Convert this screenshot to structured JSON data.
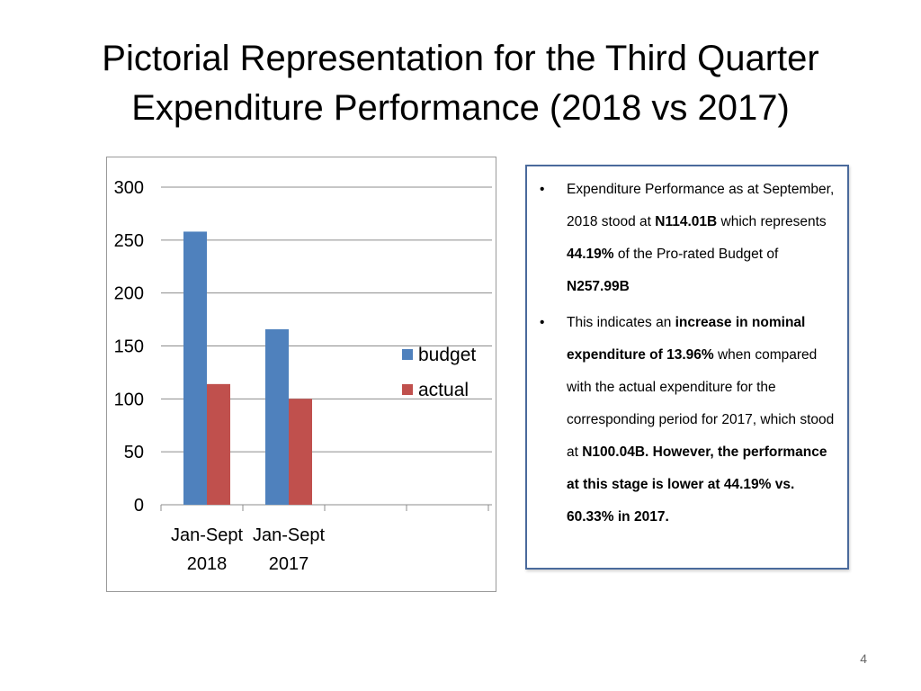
{
  "slide": {
    "title_line1": "Pictorial Representation for the Third Quarter",
    "title_line2": "Expenditure Performance (2018 vs 2017)",
    "page_number": "4"
  },
  "chart_data": {
    "type": "bar",
    "categories": [
      [
        "Jan-Sept",
        "2018"
      ],
      [
        "Jan-Sept",
        "2017"
      ]
    ],
    "series": [
      {
        "name": "budget",
        "values": [
          257.99,
          165.8
        ],
        "color": "#4f81bd"
      },
      {
        "name": "actual",
        "values": [
          114.01,
          100.04
        ],
        "color": "#c0504d"
      }
    ],
    "ylim": [
      0,
      300
    ],
    "yticks": [
      0,
      50,
      100,
      150,
      200,
      250,
      300
    ],
    "grid": true,
    "legend": "right"
  },
  "info": {
    "bullet_symbol": "•",
    "bullet1": [
      {
        "t": "Expenditure Performance as at September, 2018 stood at ",
        "b": false
      },
      {
        "t": "N114.01B",
        "b": true
      },
      {
        "t": " which represents ",
        "b": false
      },
      {
        "t": "44.19%",
        "b": true
      },
      {
        "t": " of the Pro-rated Budget of ",
        "b": false
      },
      {
        "t": "N257.99B",
        "b": true
      }
    ],
    "bullet2": [
      {
        "t": "This indicates an ",
        "b": false
      },
      {
        "t": "increase in nominal expenditure of 13.96%",
        "b": true
      },
      {
        "t": " when compared with the actual expenditure for the corresponding period for 2017, which stood at ",
        "b": false
      },
      {
        "t": "N100.04B. However, the performance at this stage is lower at 44.19% vs. 60.33% in 2017.",
        "b": true
      }
    ]
  }
}
